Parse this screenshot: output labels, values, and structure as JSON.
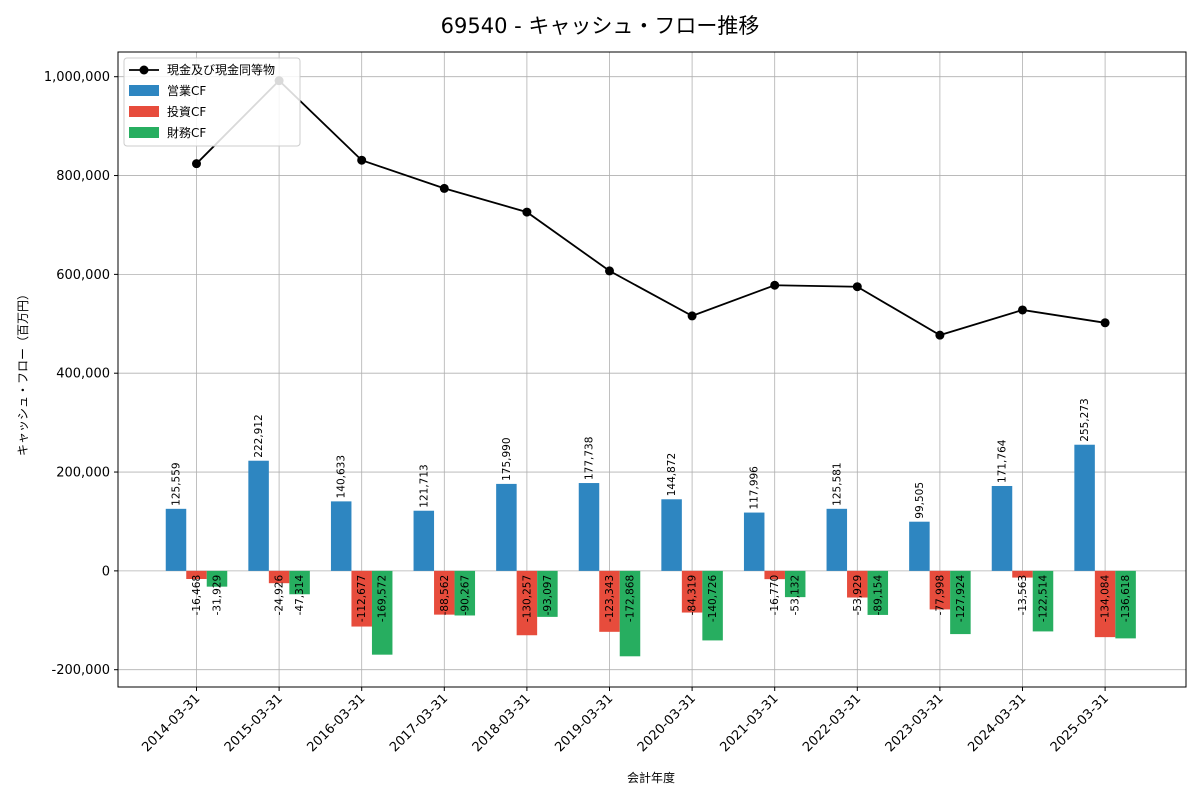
{
  "chart_data": {
    "type": "bar",
    "title": "69540 - キャッシュ・フロー推移",
    "xlabel": "会計年度",
    "ylabel": "キャッシュ・フロー（百万円）",
    "ylim": [
      -235000,
      1050000
    ],
    "yticks": [
      -200000,
      0,
      200000,
      400000,
      600000,
      800000,
      1000000
    ],
    "ytick_labels": [
      "-200,000",
      "0",
      "200,000",
      "400,000",
      "600,000",
      "800,000",
      "1,000,000"
    ],
    "grid": true,
    "legend_position": "top-left",
    "categories": [
      "2014-03-31",
      "2015-03-31",
      "2016-03-31",
      "2017-03-31",
      "2018-03-31",
      "2019-03-31",
      "2020-03-31",
      "2021-03-31",
      "2022-03-31",
      "2023-03-31",
      "2024-03-31",
      "2025-03-31"
    ],
    "line_series": {
      "name": "現金及び現金同等物",
      "color": "#000000",
      "values": [
        824000,
        992000,
        831000,
        774000,
        726000,
        607000,
        516000,
        578000,
        575000,
        477000,
        528000,
        502000
      ]
    },
    "series": [
      {
        "name": "営業CF",
        "color": "#2e86c1",
        "values": [
          125559,
          222912,
          140633,
          121713,
          175990,
          177738,
          144872,
          117996,
          125581,
          99505,
          171764,
          255273
        ],
        "labels": [
          "125,559",
          "222,912",
          "140,633",
          "121,713",
          "175,990",
          "177,738",
          "144,872",
          "117,996",
          "125,581",
          "99,505",
          "171,764",
          "255,273"
        ]
      },
      {
        "name": "投資CF",
        "color": "#e74c3c",
        "values": [
          -16468,
          -24926,
          -112677,
          -88562,
          -130257,
          -123343,
          -84319,
          -16770,
          -53929,
          -77998,
          -13563,
          -134084
        ],
        "labels": [
          "-16,468",
          "-24,926",
          "-112,677",
          "-88,562",
          "-130,257",
          "-123,343",
          "-84,319",
          "-16,770",
          "-53,929",
          "-77,998",
          "-13,563",
          "-134,084"
        ]
      },
      {
        "name": "財務CF",
        "color": "#27ae60",
        "values": [
          -31929,
          -47314,
          -169572,
          -90267,
          -93097,
          -172868,
          -140726,
          -53132,
          -89154,
          -127924,
          -122514,
          -136618
        ],
        "labels": [
          "-31,929",
          "-47,314",
          "-169,572",
          "-90,267",
          "-93,097",
          "-172,868",
          "-140,726",
          "-53,132",
          "-89,154",
          "-127,924",
          "-122,514",
          "-136,618"
        ]
      }
    ]
  }
}
